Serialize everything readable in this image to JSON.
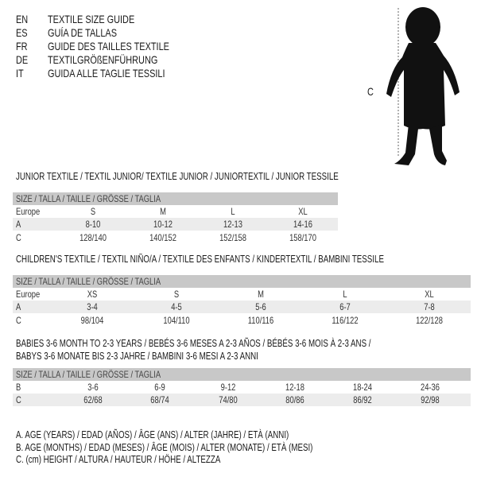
{
  "header": {
    "languages": [
      {
        "code": "EN",
        "text": "TEXTILE SIZE GUIDE"
      },
      {
        "code": "ES",
        "text": "GUÍA DE TALLAS"
      },
      {
        "code": "FR",
        "text": "GUIDE DES TAILLES TEXTILE"
      },
      {
        "code": "DE",
        "text": "TEXTILGRÖßENFÜHRUNG"
      },
      {
        "code": "IT",
        "text": "GUIDA ALLE TAGLIE TESSILI"
      }
    ],
    "figure_label": "C"
  },
  "junior": {
    "title": "JUNIOR TEXTILE / TEXTIL JUNIOR/ TEXTILE JUNIOR / JUNIORTEXTIL / JUNIOR TESSILE",
    "size_header": "SIZE / TALLA / TAILLE / GRÖSSE / TAGLIA",
    "rows": [
      {
        "label": "Europe",
        "values": [
          "S",
          "M",
          "L",
          "XL"
        ]
      },
      {
        "label": "A",
        "values": [
          "8-10",
          "10-12",
          "12-13",
          "14-16"
        ]
      },
      {
        "label": "C",
        "values": [
          "128/140",
          "140/152",
          "152/158",
          "158/170"
        ]
      }
    ]
  },
  "children": {
    "title": "CHILDREN'S TEXTILE / TEXTIL NIÑO/A / TEXTILE DES ENFANTS / KINDERTEXTIL / BAMBINI TESSILE",
    "size_header": "SIZE / TALLA / TAILLE / GRÖSSE / TAGLIA",
    "rows": [
      {
        "label": "Europe",
        "values": [
          "XS",
          "S",
          "M",
          "L",
          "XL"
        ]
      },
      {
        "label": "A",
        "values": [
          "3-4",
          "4-5",
          "5-6",
          "6-7",
          "7-8"
        ]
      },
      {
        "label": "C",
        "values": [
          "98/104",
          "104/110",
          "110/116",
          "116/122",
          "122/128"
        ]
      }
    ]
  },
  "babies": {
    "title_line1": "BABIES 3-6 MONTH TO 2-3 YEARS / BEBÉS 3-6 MESES A 2-3 AÑOS / BÉBÉS 3-6 MOIS À 2-3 ANS /",
    "title_line2": "BABYS 3-6 MONATE BIS 2-3 JAHRE / BAMBINI 3-6 MESI A 2-3 ANNI",
    "size_header": "SIZE / TALLA / TAILLE / GRÖSSE / TAGLIA",
    "rows": [
      {
        "label": "B",
        "values": [
          "3-6",
          "6-9",
          "9-12",
          "12-18",
          "18-24",
          "24-36"
        ]
      },
      {
        "label": "C",
        "values": [
          "62/68",
          "68/74",
          "74/80",
          "80/86",
          "86/92",
          "92/98"
        ]
      }
    ]
  },
  "legend": [
    "A. AGE (YEARS) / EDAD (AÑOS) / ÂGE (ANS) / ALTER (JAHRE) / ETÀ (ANNI)",
    "B. AGE (MONTHS) / EDAD (MESES) / ÂGE (MOIS) / ALTER (MONATE) / ETÀ (MESI)",
    "C. (cm) HEIGHT / ALTURA / HAUTEUR / HÖHE / ALTEZZA"
  ]
}
